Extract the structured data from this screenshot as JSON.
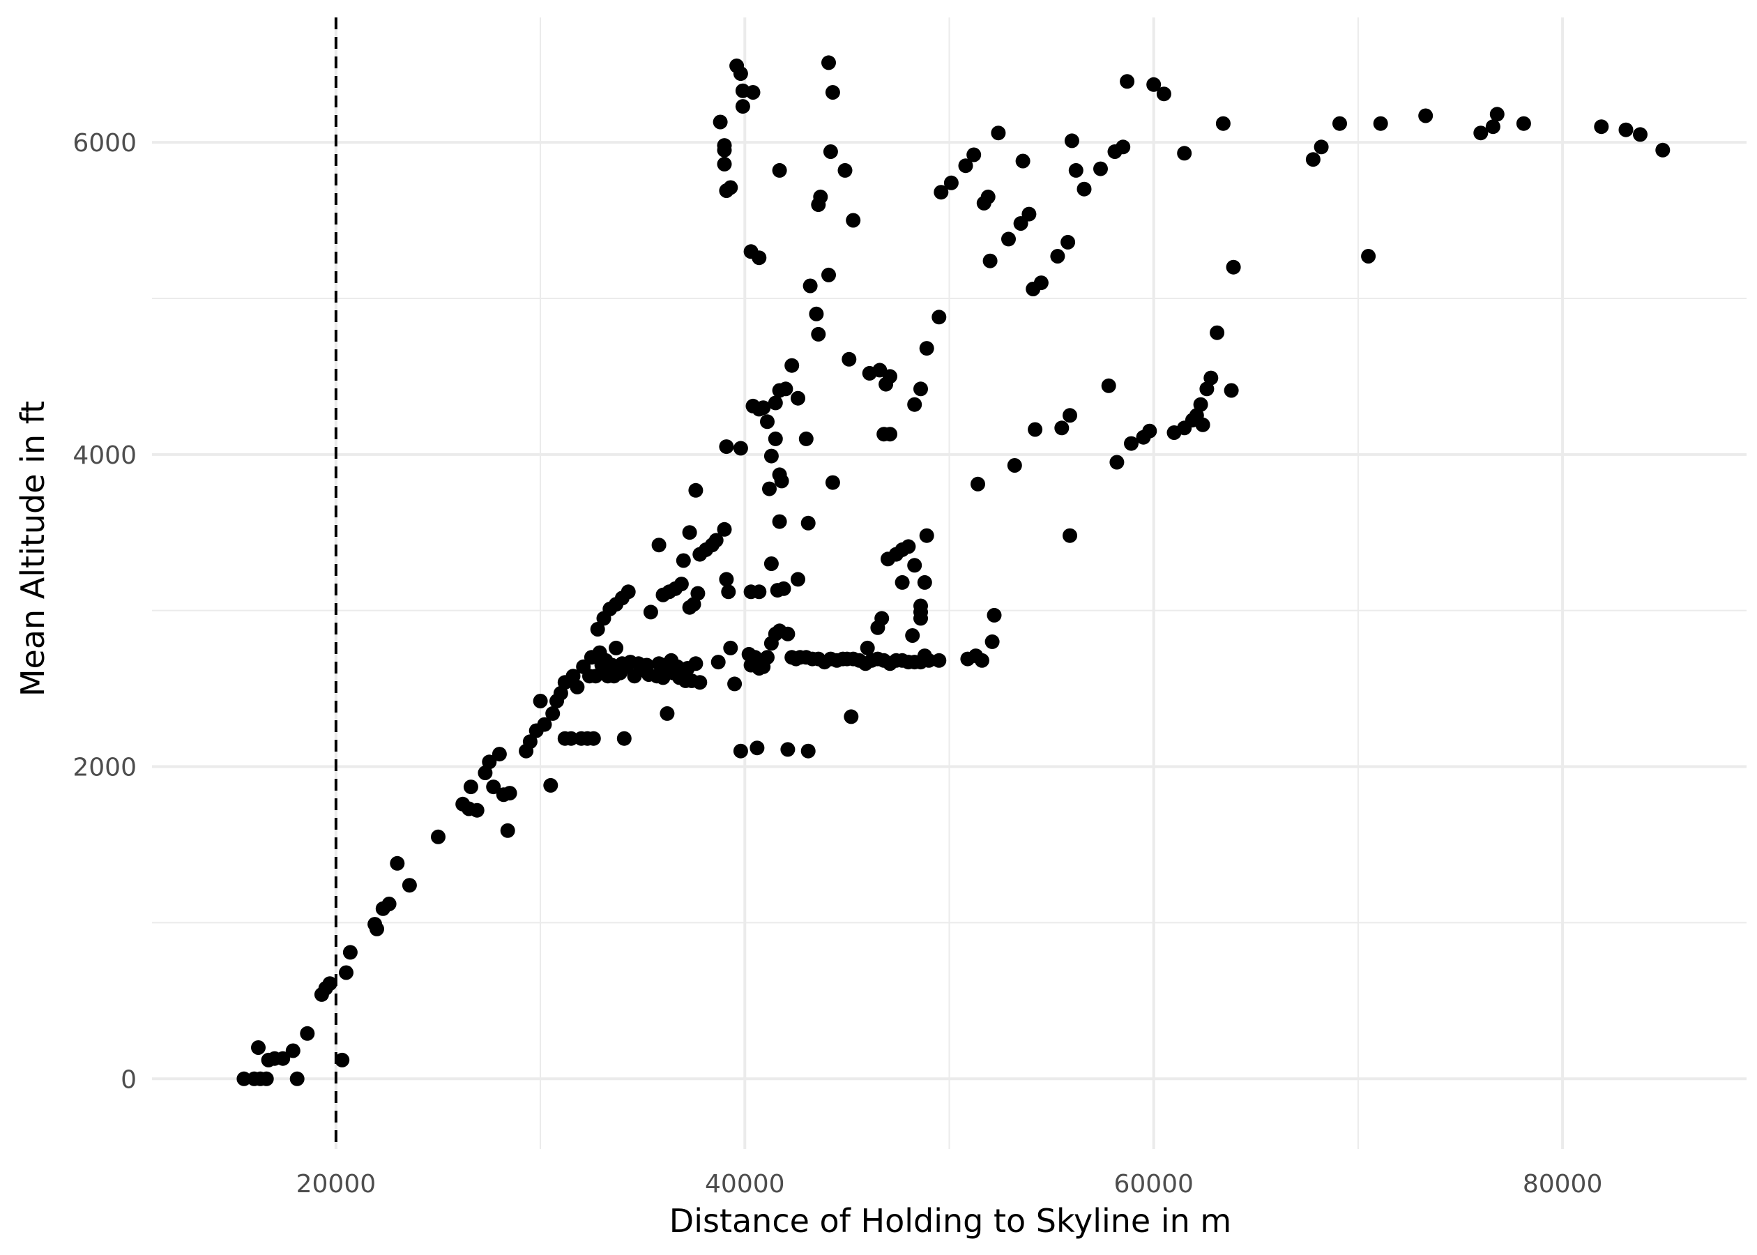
{
  "chart_data": {
    "type": "scatter",
    "title": "",
    "xlabel": "Distance of Holding to Skyline in m",
    "ylabel": "Mean Altitude in ft",
    "xlim": [
      11000,
      89000
    ],
    "ylim": [
      -450,
      6800
    ],
    "x_ticks": [
      20000,
      40000,
      60000,
      80000
    ],
    "x_minor_ticks": [
      30000,
      50000,
      70000
    ],
    "y_ticks": [
      0,
      2000,
      4000,
      6000
    ],
    "y_minor_ticks": [
      1000,
      3000,
      5000
    ],
    "grid": true,
    "legend": "none",
    "reference_line": {
      "orientation": "vertical",
      "x": 20000,
      "style": "dashed",
      "color": "#000000"
    },
    "point_color": "#000000",
    "grid_color": "#ebebeb",
    "points": [
      [
        15500,
        0
      ],
      [
        16000,
        0
      ],
      [
        16300,
        0
      ],
      [
        16600,
        0
      ],
      [
        16200,
        200
      ],
      [
        16700,
        120
      ],
      [
        17000,
        130
      ],
      [
        17400,
        130
      ],
      [
        17900,
        180
      ],
      [
        18100,
        0
      ],
      [
        18600,
        290
      ],
      [
        19300,
        540
      ],
      [
        19500,
        580
      ],
      [
        19700,
        610
      ],
      [
        20300,
        120
      ],
      [
        20500,
        680
      ],
      [
        20700,
        810
      ],
      [
        21900,
        990
      ],
      [
        22000,
        960
      ],
      [
        22300,
        1090
      ],
      [
        22600,
        1120
      ],
      [
        23000,
        1380
      ],
      [
        23600,
        1240
      ],
      [
        25000,
        1550
      ],
      [
        26200,
        1760
      ],
      [
        26500,
        1730
      ],
      [
        26900,
        1720
      ],
      [
        26600,
        1870
      ],
      [
        27300,
        1960
      ],
      [
        27500,
        2030
      ],
      [
        27700,
        1870
      ],
      [
        28000,
        2080
      ],
      [
        28200,
        1820
      ],
      [
        28500,
        1830
      ],
      [
        28400,
        1590
      ],
      [
        29300,
        2100
      ],
      [
        29500,
        2160
      ],
      [
        29800,
        2230
      ],
      [
        30000,
        2420
      ],
      [
        30200,
        2270
      ],
      [
        30600,
        2340
      ],
      [
        30500,
        1880
      ],
      [
        30800,
        2420
      ],
      [
        31000,
        2470
      ],
      [
        31200,
        2540
      ],
      [
        31600,
        2580
      ],
      [
        31800,
        2510
      ],
      [
        31200,
        2180
      ],
      [
        31500,
        2180
      ],
      [
        32000,
        2180
      ],
      [
        32300,
        2180
      ],
      [
        32600,
        2180
      ],
      [
        32100,
        2640
      ],
      [
        32400,
        2580
      ],
      [
        32700,
        2580
      ],
      [
        33000,
        2650
      ],
      [
        33300,
        2580
      ],
      [
        33600,
        2580
      ],
      [
        33900,
        2600
      ],
      [
        34200,
        2640
      ],
      [
        34600,
        2580
      ],
      [
        35000,
        2620
      ],
      [
        35300,
        2590
      ],
      [
        35700,
        2580
      ],
      [
        36000,
        2570
      ],
      [
        36200,
        2640
      ],
      [
        36500,
        2600
      ],
      [
        36800,
        2570
      ],
      [
        37100,
        2550
      ],
      [
        37400,
        2550
      ],
      [
        37800,
        2540
      ],
      [
        32500,
        2700
      ],
      [
        32900,
        2730
      ],
      [
        33200,
        2680
      ],
      [
        33500,
        2650
      ],
      [
        34000,
        2660
      ],
      [
        34400,
        2670
      ],
      [
        34800,
        2660
      ],
      [
        35200,
        2650
      ],
      [
        35800,
        2660
      ],
      [
        36100,
        2650
      ],
      [
        36400,
        2680
      ],
      [
        36700,
        2640
      ],
      [
        37200,
        2630
      ],
      [
        37600,
        2660
      ],
      [
        32800,
        2880
      ],
      [
        33100,
        2950
      ],
      [
        33400,
        3010
      ],
      [
        33700,
        3040
      ],
      [
        34000,
        3080
      ],
      [
        34300,
        3120
      ],
      [
        33700,
        2760
      ],
      [
        34100,
        2180
      ],
      [
        35400,
        2990
      ],
      [
        35800,
        3420
      ],
      [
        36000,
        3100
      ],
      [
        36300,
        3120
      ],
      [
        36600,
        3140
      ],
      [
        36900,
        3170
      ],
      [
        37300,
        3020
      ],
      [
        37500,
        3040
      ],
      [
        37700,
        3110
      ],
      [
        37800,
        3360
      ],
      [
        38100,
        3390
      ],
      [
        38400,
        3420
      ],
      [
        38600,
        3450
      ],
      [
        39000,
        3520
      ],
      [
        37300,
        3500
      ],
      [
        37000,
        3320
      ],
      [
        37600,
        3770
      ],
      [
        36200,
        2340
      ],
      [
        38700,
        2670
      ],
      [
        39200,
        3120
      ],
      [
        39100,
        3200
      ],
      [
        39300,
        2760
      ],
      [
        39500,
        2530
      ],
      [
        39800,
        2100
      ],
      [
        40200,
        2720
      ],
      [
        40300,
        2650
      ],
      [
        40500,
        2700
      ],
      [
        40700,
        2630
      ],
      [
        40900,
        2640
      ],
      [
        41100,
        2700
      ],
      [
        41300,
        2790
      ],
      [
        41500,
        2850
      ],
      [
        41700,
        2870
      ],
      [
        42100,
        2850
      ],
      [
        42300,
        2700
      ],
      [
        42500,
        2690
      ],
      [
        42700,
        2700
      ],
      [
        43000,
        2700
      ],
      [
        43300,
        2690
      ],
      [
        43600,
        2690
      ],
      [
        43900,
        2670
      ],
      [
        44200,
        2690
      ],
      [
        44500,
        2680
      ],
      [
        44800,
        2690
      ],
      [
        45000,
        2690
      ],
      [
        45300,
        2690
      ],
      [
        45600,
        2680
      ],
      [
        45900,
        2660
      ],
      [
        46200,
        2680
      ],
      [
        46500,
        2690
      ],
      [
        46800,
        2680
      ],
      [
        47100,
        2660
      ],
      [
        47400,
        2680
      ],
      [
        47700,
        2680
      ],
      [
        48000,
        2670
      ],
      [
        48300,
        2670
      ],
      [
        48600,
        2670
      ],
      [
        48800,
        2710
      ],
      [
        49000,
        2680
      ],
      [
        49500,
        2680
      ],
      [
        40600,
        2120
      ],
      [
        42100,
        2110
      ],
      [
        43100,
        2100
      ],
      [
        45200,
        2320
      ],
      [
        46000,
        2760
      ],
      [
        46500,
        2890
      ],
      [
        46700,
        2950
      ],
      [
        40300,
        3120
      ],
      [
        40700,
        3120
      ],
      [
        41300,
        3300
      ],
      [
        41600,
        3130
      ],
      [
        41900,
        3140
      ],
      [
        42600,
        3200
      ],
      [
        41700,
        3570
      ],
      [
        43100,
        3560
      ],
      [
        40400,
        4310
      ],
      [
        40700,
        4290
      ],
      [
        40900,
        4300
      ],
      [
        41100,
        4210
      ],
      [
        41300,
        3990
      ],
      [
        41500,
        4330
      ],
      [
        41700,
        4410
      ],
      [
        42000,
        4420
      ],
      [
        41200,
        3780
      ],
      [
        41800,
        3830
      ],
      [
        41700,
        3870
      ],
      [
        41500,
        4100
      ],
      [
        42300,
        4570
      ],
      [
        42600,
        4360
      ],
      [
        43000,
        4100
      ],
      [
        44300,
        3820
      ],
      [
        39100,
        4050
      ],
      [
        39800,
        4040
      ],
      [
        47000,
        3330
      ],
      [
        47400,
        3360
      ],
      [
        47700,
        3390
      ],
      [
        48000,
        3410
      ],
      [
        48300,
        3290
      ],
      [
        47700,
        3180
      ],
      [
        48600,
        3030
      ],
      [
        48600,
        2990
      ],
      [
        48600,
        2950
      ],
      [
        48800,
        3180
      ],
      [
        48900,
        3480
      ],
      [
        48200,
        2840
      ],
      [
        46100,
        4520
      ],
      [
        46600,
        4540
      ],
      [
        47100,
        4500
      ],
      [
        46800,
        4130
      ],
      [
        47100,
        4130
      ],
      [
        46900,
        4450
      ],
      [
        48300,
        4320
      ],
      [
        48600,
        4420
      ],
      [
        40300,
        5300
      ],
      [
        40700,
        5260
      ],
      [
        43200,
        5080
      ],
      [
        43500,
        4900
      ],
      [
        43600,
        4770
      ],
      [
        44100,
        5150
      ],
      [
        45100,
        4610
      ],
      [
        48900,
        4680
      ],
      [
        49500,
        4880
      ],
      [
        38800,
        6130
      ],
      [
        39000,
        5980
      ],
      [
        39000,
        5950
      ],
      [
        39000,
        5860
      ],
      [
        39100,
        5690
      ],
      [
        39300,
        5710
      ],
      [
        39600,
        6490
      ],
      [
        39800,
        6440
      ],
      [
        39900,
        6230
      ],
      [
        39900,
        6330
      ],
      [
        40400,
        6320
      ],
      [
        41700,
        5820
      ],
      [
        43600,
        5600
      ],
      [
        43700,
        5650
      ],
      [
        44100,
        6510
      ],
      [
        44200,
        5940
      ],
      [
        44300,
        6320
      ],
      [
        44900,
        5820
      ],
      [
        45300,
        5500
      ],
      [
        49600,
        5680
      ],
      [
        50100,
        5740
      ],
      [
        50800,
        5850
      ],
      [
        51200,
        5920
      ],
      [
        51700,
        5610
      ],
      [
        51900,
        5650
      ],
      [
        52400,
        6060
      ],
      [
        52000,
        5240
      ],
      [
        52900,
        5380
      ],
      [
        53500,
        5480
      ],
      [
        53600,
        5880
      ],
      [
        53900,
        5540
      ],
      [
        54100,
        5060
      ],
      [
        54500,
        5100
      ],
      [
        55300,
        5270
      ],
      [
        55800,
        5360
      ],
      [
        56000,
        6010
      ],
      [
        56200,
        5820
      ],
      [
        56600,
        5700
      ],
      [
        57400,
        5830
      ],
      [
        58100,
        5940
      ],
      [
        58500,
        5970
      ],
      [
        58700,
        6390
      ],
      [
        60000,
        6370
      ],
      [
        60500,
        6310
      ],
      [
        61500,
        5930
      ],
      [
        63400,
        6120
      ],
      [
        51400,
        3810
      ],
      [
        53200,
        3930
      ],
      [
        54200,
        4160
      ],
      [
        55500,
        4170
      ],
      [
        55900,
        4250
      ],
      [
        55900,
        3480
      ],
      [
        57800,
        4440
      ],
      [
        58200,
        3950
      ],
      [
        58900,
        4070
      ],
      [
        59500,
        4110
      ],
      [
        59800,
        4150
      ],
      [
        61000,
        4140
      ],
      [
        61500,
        4170
      ],
      [
        61900,
        4220
      ],
      [
        62100,
        4250
      ],
      [
        62300,
        4320
      ],
      [
        62400,
        4190
      ],
      [
        62600,
        4420
      ],
      [
        62800,
        4490
      ],
      [
        63100,
        4780
      ],
      [
        63800,
        4410
      ],
      [
        63900,
        5200
      ],
      [
        50900,
        2690
      ],
      [
        51300,
        2710
      ],
      [
        51600,
        2680
      ],
      [
        52100,
        2800
      ],
      [
        52200,
        2970
      ],
      [
        67800,
        5890
      ],
      [
        68200,
        5970
      ],
      [
        69100,
        6120
      ],
      [
        70500,
        5270
      ],
      [
        71100,
        6120
      ],
      [
        73300,
        6170
      ],
      [
        76000,
        6060
      ],
      [
        76600,
        6100
      ],
      [
        76800,
        6180
      ],
      [
        78100,
        6120
      ],
      [
        81900,
        6100
      ],
      [
        83100,
        6080
      ],
      [
        83800,
        6050
      ],
      [
        84900,
        5950
      ]
    ]
  }
}
